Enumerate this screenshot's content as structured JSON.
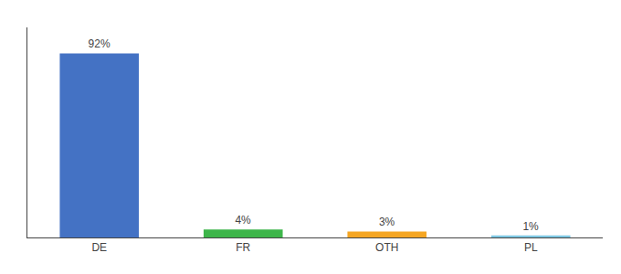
{
  "chart_data": {
    "type": "bar",
    "categories": [
      "DE",
      "FR",
      "OTH",
      "PL"
    ],
    "values": [
      92,
      4,
      3,
      1
    ],
    "value_labels": [
      "92%",
      "4%",
      "3%",
      "1%"
    ],
    "colors": [
      "#4472c4",
      "#3db54a",
      "#f5a623",
      "#7ec8e3"
    ],
    "ylim": [
      0,
      105
    ],
    "grid": false,
    "data_labels": true,
    "tick_labels": "x"
  }
}
